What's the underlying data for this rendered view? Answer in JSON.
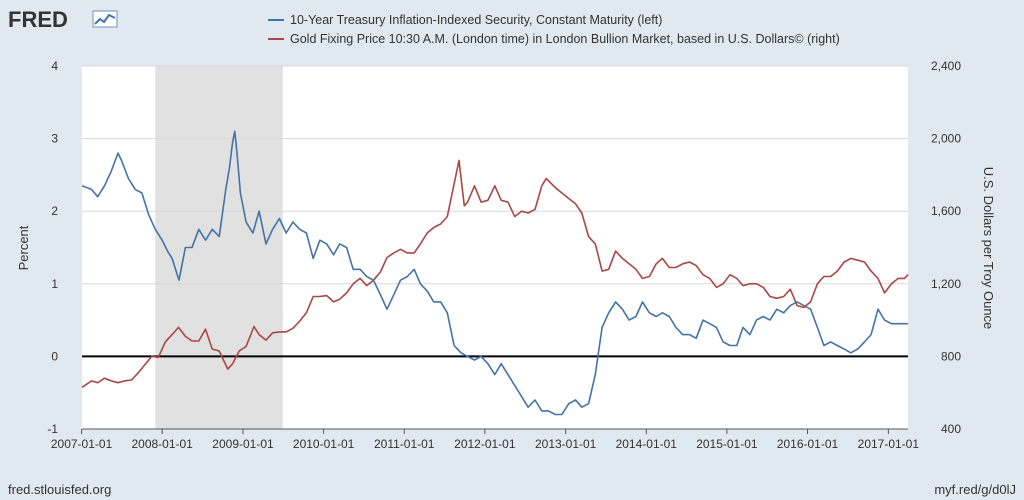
{
  "branding": {
    "logo": "FRED",
    "source_url": "fred.stlouisfed.org",
    "short_url": "myf.red/g/d0lJ"
  },
  "colors": {
    "background": "#e1e9f0",
    "plot_bg": "#ffffff",
    "series_left": "#4572a7",
    "series_right": "#aa4643",
    "recession": "#e1e1e1",
    "zero_line": "#000000"
  },
  "chart_data": {
    "type": "line",
    "x_axis": {
      "type": "date",
      "range": [
        "2007-01-03",
        "2017-03-31"
      ],
      "tick_labels": [
        "2007-01-01",
        "2008-01-01",
        "2009-01-01",
        "2010-01-01",
        "2011-01-01",
        "2012-01-01",
        "2013-01-01",
        "2014-01-01",
        "2015-01-01",
        "2016-01-01",
        "2017-01-01"
      ]
    },
    "y_left": {
      "label": "Percent",
      "range": [
        -1,
        4
      ],
      "ticks": [
        "4",
        "3",
        "2",
        "1",
        "0",
        "-1"
      ],
      "tick_values": [
        4,
        3,
        2,
        1,
        0,
        -1
      ]
    },
    "y_right": {
      "label": "U.S. Dollars per Troy Ounce",
      "range": [
        400,
        2400
      ],
      "ticks": [
        "2,400",
        "2,000",
        "1,600",
        "1,200",
        "800",
        "400"
      ],
      "tick_values": [
        2400,
        2000,
        1600,
        1200,
        800,
        400
      ]
    },
    "recession": {
      "start": "2007-12-01",
      "end": "2009-06-30"
    },
    "reference_line": {
      "axis": "left",
      "value": 0
    },
    "grid": true,
    "legend_position": "top",
    "series": [
      {
        "name": "10-Year Treasury Inflation-Indexed Security, Constant Maturity (left)",
        "axis": "left",
        "x": [
          "2007-01-03",
          "2007-02-15",
          "2007-03-15",
          "2007-04-15",
          "2007-05-15",
          "2007-06-15",
          "2007-07-01",
          "2007-08-01",
          "2007-09-01",
          "2007-10-01",
          "2007-11-01",
          "2007-12-01",
          "2008-01-01",
          "2008-01-25",
          "2008-02-15",
          "2008-03-17",
          "2008-04-15",
          "2008-05-15",
          "2008-06-15",
          "2008-07-15",
          "2008-08-15",
          "2008-09-15",
          "2008-10-15",
          "2008-11-01",
          "2008-11-15",
          "2008-11-25",
          "2008-12-05",
          "2008-12-20",
          "2009-01-15",
          "2009-02-15",
          "2009-03-15",
          "2009-04-15",
          "2009-05-15",
          "2009-06-15",
          "2009-07-15",
          "2009-08-15",
          "2009-09-15",
          "2009-10-15",
          "2009-11-15",
          "2009-12-15",
          "2010-01-15",
          "2010-02-15",
          "2010-03-15",
          "2010-04-15",
          "2010-05-15",
          "2010-06-15",
          "2010-07-15",
          "2010-08-15",
          "2010-09-15",
          "2010-10-15",
          "2010-11-15",
          "2010-12-15",
          "2011-01-15",
          "2011-02-15",
          "2011-03-15",
          "2011-04-15",
          "2011-05-15",
          "2011-06-15",
          "2011-07-15",
          "2011-08-15",
          "2011-09-15",
          "2011-10-15",
          "2011-11-15",
          "2011-12-15",
          "2012-01-15",
          "2012-02-15",
          "2012-03-15",
          "2012-04-15",
          "2012-05-15",
          "2012-06-15",
          "2012-07-15",
          "2012-08-15",
          "2012-09-15",
          "2012-10-15",
          "2012-11-15",
          "2012-12-15",
          "2013-01-15",
          "2013-02-15",
          "2013-03-15",
          "2013-04-15",
          "2013-05-15",
          "2013-06-15",
          "2013-07-15",
          "2013-08-15",
          "2013-09-15",
          "2013-10-15",
          "2013-11-15",
          "2013-12-15",
          "2014-01-15",
          "2014-02-15",
          "2014-03-15",
          "2014-04-15",
          "2014-05-15",
          "2014-06-15",
          "2014-07-15",
          "2014-08-15",
          "2014-09-15",
          "2014-10-15",
          "2014-11-15",
          "2014-12-15",
          "2015-01-15",
          "2015-02-15",
          "2015-03-15",
          "2015-04-15",
          "2015-05-15",
          "2015-06-15",
          "2015-07-15",
          "2015-08-15",
          "2015-09-15",
          "2015-10-15",
          "2015-11-15",
          "2015-12-15",
          "2016-01-15",
          "2016-02-15",
          "2016-03-15",
          "2016-04-15",
          "2016-05-15",
          "2016-06-15",
          "2016-07-15",
          "2016-08-15",
          "2016-09-15",
          "2016-10-15",
          "2016-11-15",
          "2016-12-15",
          "2017-01-15",
          "2017-02-15",
          "2017-03-15",
          "2017-03-31"
        ],
        "values": [
          2.35,
          2.3,
          2.2,
          2.35,
          2.55,
          2.8,
          2.7,
          2.45,
          2.3,
          2.25,
          1.95,
          1.75,
          1.6,
          1.45,
          1.35,
          1.05,
          1.5,
          1.5,
          1.75,
          1.6,
          1.75,
          1.65,
          2.3,
          2.6,
          2.95,
          3.1,
          2.8,
          2.25,
          1.85,
          1.7,
          2.0,
          1.55,
          1.75,
          1.9,
          1.7,
          1.85,
          1.75,
          1.7,
          1.35,
          1.6,
          1.55,
          1.4,
          1.55,
          1.5,
          1.2,
          1.2,
          1.1,
          1.05,
          0.85,
          0.65,
          0.85,
          1.05,
          1.1,
          1.2,
          1.0,
          0.9,
          0.75,
          0.75,
          0.6,
          0.15,
          0.05,
          0.0,
          -0.05,
          0.0,
          -0.1,
          -0.25,
          -0.1,
          -0.25,
          -0.4,
          -0.55,
          -0.7,
          -0.6,
          -0.75,
          -0.75,
          -0.8,
          -0.8,
          -0.65,
          -0.6,
          -0.7,
          -0.65,
          -0.25,
          0.4,
          0.6,
          0.75,
          0.65,
          0.5,
          0.55,
          0.75,
          0.6,
          0.55,
          0.6,
          0.55,
          0.4,
          0.3,
          0.3,
          0.25,
          0.5,
          0.45,
          0.4,
          0.2,
          0.15,
          0.15,
          0.4,
          0.3,
          0.5,
          0.55,
          0.5,
          0.65,
          0.6,
          0.7,
          0.75,
          0.7,
          0.65,
          0.4,
          0.15,
          0.2,
          0.15,
          0.1,
          0.05,
          0.1,
          0.2,
          0.3,
          0.65,
          0.5,
          0.45,
          0.45,
          0.45,
          0.45
        ],
        "color": "#4572a7"
      },
      {
        "name": "Gold Fixing Price 10:30 A.M. (London time) in London Bullion Market, based in U.S. Dollars© (right)",
        "axis": "right",
        "x": [
          "2007-01-03",
          "2007-02-15",
          "2007-03-15",
          "2007-04-15",
          "2007-05-15",
          "2007-06-15",
          "2007-07-15",
          "2007-08-15",
          "2007-09-15",
          "2007-10-15",
          "2007-11-15",
          "2007-12-15",
          "2008-01-15",
          "2008-02-15",
          "2008-03-15",
          "2008-04-15",
          "2008-05-15",
          "2008-06-15",
          "2008-07-15",
          "2008-08-15",
          "2008-09-15",
          "2008-10-24",
          "2008-11-15",
          "2008-12-15",
          "2009-01-15",
          "2009-02-20",
          "2009-03-15",
          "2009-04-15",
          "2009-05-15",
          "2009-06-15",
          "2009-07-15",
          "2009-08-15",
          "2009-09-15",
          "2009-10-15",
          "2009-11-15",
          "2009-12-15",
          "2010-01-15",
          "2010-02-15",
          "2010-03-15",
          "2010-04-15",
          "2010-05-15",
          "2010-06-15",
          "2010-07-15",
          "2010-08-15",
          "2010-09-15",
          "2010-10-15",
          "2010-11-15",
          "2010-12-15",
          "2011-01-15",
          "2011-02-15",
          "2011-03-15",
          "2011-04-15",
          "2011-05-15",
          "2011-06-15",
          "2011-07-15",
          "2011-08-15",
          "2011-09-06",
          "2011-09-30",
          "2011-10-15",
          "2011-11-15",
          "2011-12-15",
          "2012-01-15",
          "2012-02-15",
          "2012-03-15",
          "2012-04-15",
          "2012-05-15",
          "2012-06-15",
          "2012-07-15",
          "2012-08-15",
          "2012-09-15",
          "2012-10-05",
          "2012-11-15",
          "2012-12-15",
          "2013-01-15",
          "2013-02-15",
          "2013-03-15",
          "2013-04-15",
          "2013-05-15",
          "2013-06-15",
          "2013-07-15",
          "2013-08-15",
          "2013-09-15",
          "2013-10-15",
          "2013-11-15",
          "2013-12-15",
          "2014-01-15",
          "2014-02-15",
          "2014-03-15",
          "2014-04-15",
          "2014-05-15",
          "2014-06-15",
          "2014-07-15",
          "2014-08-15",
          "2014-09-15",
          "2014-10-15",
          "2014-11-15",
          "2014-12-15",
          "2015-01-15",
          "2015-02-15",
          "2015-03-15",
          "2015-04-15",
          "2015-05-15",
          "2015-06-15",
          "2015-07-15",
          "2015-08-15",
          "2015-09-15",
          "2015-10-15",
          "2015-11-15",
          "2015-12-15",
          "2016-01-15",
          "2016-02-15",
          "2016-03-15",
          "2016-04-15",
          "2016-05-15",
          "2016-06-15",
          "2016-07-15",
          "2016-08-15",
          "2016-09-15",
          "2016-10-15",
          "2016-11-15",
          "2016-12-15",
          "2017-01-15",
          "2017-02-15",
          "2017-03-15",
          "2017-03-31"
        ],
        "values": [
          630,
          665,
          655,
          680,
          665,
          655,
          665,
          670,
          710,
          755,
          800,
          795,
          880,
          920,
          960,
          910,
          885,
          885,
          950,
          840,
          830,
          730,
          760,
          830,
          855,
          965,
          920,
          890,
          930,
          935,
          935,
          955,
          995,
          1040,
          1130,
          1130,
          1135,
          1100,
          1115,
          1150,
          1200,
          1230,
          1190,
          1220,
          1265,
          1345,
          1370,
          1390,
          1370,
          1370,
          1420,
          1480,
          1510,
          1530,
          1570,
          1750,
          1880,
          1630,
          1650,
          1740,
          1650,
          1660,
          1740,
          1660,
          1650,
          1570,
          1600,
          1590,
          1610,
          1740,
          1780,
          1730,
          1700,
          1670,
          1640,
          1590,
          1460,
          1420,
          1270,
          1280,
          1380,
          1340,
          1310,
          1280,
          1230,
          1240,
          1310,
          1340,
          1290,
          1290,
          1310,
          1320,
          1300,
          1250,
          1230,
          1180,
          1200,
          1250,
          1230,
          1190,
          1200,
          1200,
          1180,
          1130,
          1120,
          1130,
          1170,
          1080,
          1070,
          1100,
          1200,
          1240,
          1240,
          1270,
          1320,
          1340,
          1330,
          1320,
          1270,
          1230,
          1150,
          1200,
          1230,
          1230,
          1250
        ],
        "color": "#aa4643"
      }
    ]
  }
}
